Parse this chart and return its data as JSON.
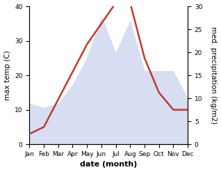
{
  "months": [
    "Jan",
    "Feb",
    "Mar",
    "Apr",
    "May",
    "Jun",
    "Jul",
    "Aug",
    "Sep",
    "Oct",
    "Nov",
    "Dec"
  ],
  "temp": [
    3,
    5,
    13,
    21,
    29,
    35,
    41,
    41,
    25,
    15,
    10,
    10
  ],
  "precip": [
    9,
    8,
    9,
    13,
    19,
    28,
    20,
    27,
    16,
    16,
    16,
    10
  ],
  "temp_color": "#c0392b",
  "precip_fill_color": "#b8c4e8",
  "temp_ylim": [
    0,
    40
  ],
  "precip_ylim": [
    0,
    30
  ],
  "xlabel": "date (month)",
  "ylabel_left": "max temp (C)",
  "ylabel_right": "med. precipitation (kg/m2)",
  "bg_color": "#ffffff",
  "temp_linewidth": 1.8,
  "xlabel_fontsize": 8,
  "ylabel_fontsize": 7.5,
  "tick_fontsize": 6.5
}
